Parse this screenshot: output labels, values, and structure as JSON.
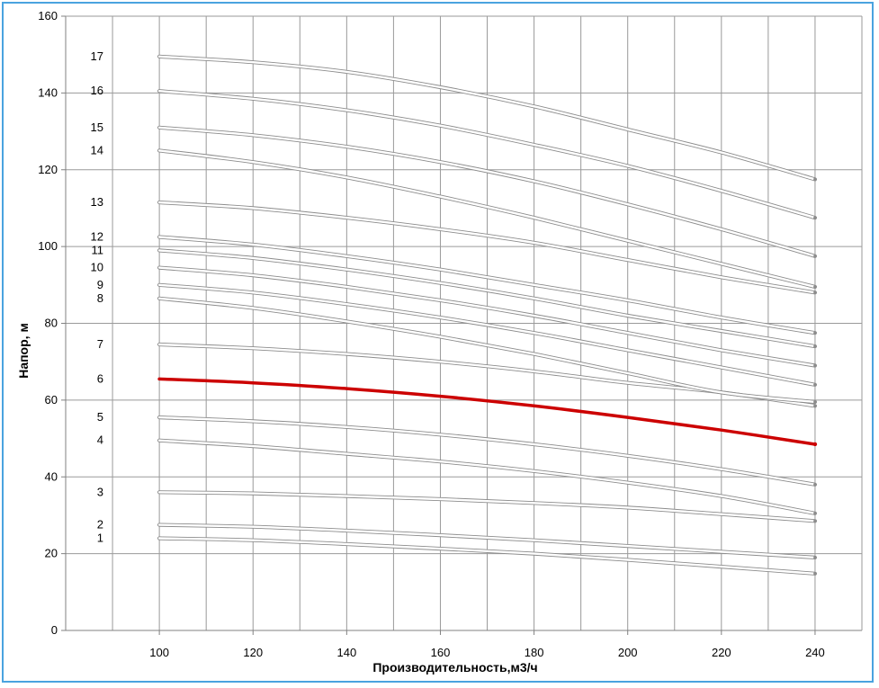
{
  "chart_data": {
    "type": "line",
    "title": "",
    "xlabel": "Производительность,м3/ч",
    "ylabel": "Напор, м",
    "xlim": [
      80,
      250
    ],
    "ylim": [
      0,
      160
    ],
    "x_ticks": [
      100,
      120,
      140,
      160,
      180,
      200,
      220,
      240
    ],
    "y_ticks": [
      0,
      20,
      40,
      60,
      80,
      100,
      120,
      140,
      160
    ],
    "grid": true,
    "legend": "none",
    "x": [
      100,
      120,
      140,
      160,
      180,
      200,
      220,
      240
    ],
    "series": [
      {
        "name": "1",
        "color": "#c8c8c8",
        "highlight": false,
        "values": [
          24,
          23.5,
          22.5,
          21.3,
          20,
          18.4,
          16.6,
          14.8
        ]
      },
      {
        "name": "2",
        "color": "#c8c8c8",
        "highlight": false,
        "values": [
          27.5,
          27,
          26,
          24.8,
          23.5,
          22,
          20.5,
          19
        ]
      },
      {
        "name": "3",
        "color": "#c8c8c8",
        "highlight": false,
        "values": [
          36,
          35.7,
          35,
          34.2,
          33.2,
          32,
          30.3,
          28.5
        ]
      },
      {
        "name": "4",
        "color": "#c8c8c8",
        "highlight": false,
        "values": [
          49.5,
          48,
          46,
          44,
          41.5,
          38.5,
          35,
          30.5
        ]
      },
      {
        "name": "5",
        "color": "#c8c8c8",
        "highlight": false,
        "values": [
          55.5,
          54.5,
          53,
          51,
          48.5,
          45.5,
          42,
          38
        ]
      },
      {
        "name": "6",
        "color": "#cc0000",
        "highlight": true,
        "values": [
          65.5,
          64.5,
          63,
          61,
          58.5,
          55.5,
          52.2,
          48.5
        ]
      },
      {
        "name": "7",
        "color": "#c8c8c8",
        "highlight": false,
        "values": [
          74.5,
          73.5,
          72,
          70,
          67.5,
          64.5,
          62,
          58.5
        ]
      },
      {
        "name": "8",
        "color": "#c8c8c8",
        "highlight": false,
        "values": [
          86.5,
          84,
          80.5,
          76.5,
          72,
          67,
          62,
          59.5
        ]
      },
      {
        "name": "9",
        "color": "#c8c8c8",
        "highlight": false,
        "values": [
          90,
          88,
          85,
          81.5,
          77.5,
          73,
          68.5,
          64
        ]
      },
      {
        "name": "10",
        "color": "#c8c8c8",
        "highlight": false,
        "values": [
          94.5,
          92.5,
          89.5,
          86,
          82,
          77.5,
          73,
          69
        ]
      },
      {
        "name": "11",
        "color": "#c8c8c8",
        "highlight": false,
        "values": [
          99,
          97,
          94,
          90.5,
          86.5,
          82,
          78,
          74
        ]
      },
      {
        "name": "12",
        "color": "#c8c8c8",
        "highlight": false,
        "values": [
          102.5,
          100.5,
          97.5,
          94,
          90,
          86,
          81.5,
          77.5
        ]
      },
      {
        "name": "13",
        "color": "#c8c8c8",
        "highlight": false,
        "values": [
          111.5,
          110,
          107.5,
          104.5,
          101,
          96.5,
          92,
          88
        ]
      },
      {
        "name": "14",
        "color": "#c8c8c8",
        "highlight": false,
        "values": [
          125,
          122,
          118,
          113,
          107.5,
          101.5,
          95.5,
          89.5
        ]
      },
      {
        "name": "15",
        "color": "#c8c8c8",
        "highlight": false,
        "values": [
          131,
          129,
          126,
          122,
          117,
          111,
          104.5,
          97.5
        ]
      },
      {
        "name": "16",
        "color": "#c8c8c8",
        "highlight": false,
        "values": [
          140.5,
          138.5,
          135.5,
          131.5,
          126.5,
          121,
          114.5,
          107.5
        ]
      },
      {
        "name": "17",
        "color": "#dcdcdc",
        "highlight": false,
        "values": [
          149.5,
          148,
          145.5,
          141.5,
          136.5,
          130.5,
          124.5,
          117.5
        ]
      }
    ]
  }
}
